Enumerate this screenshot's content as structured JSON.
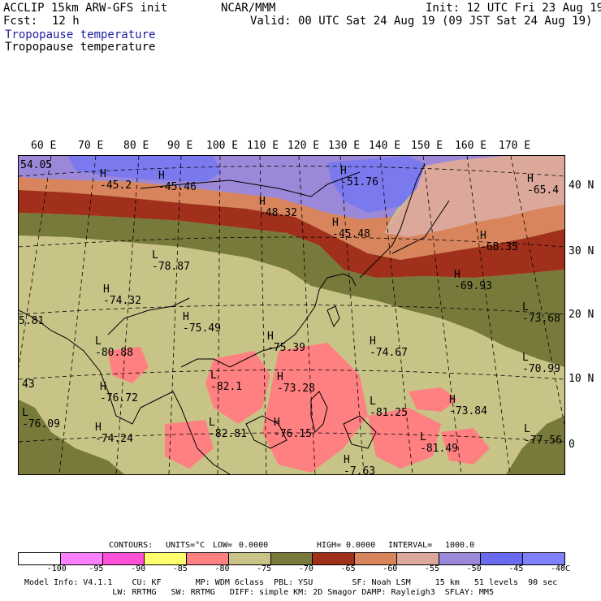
{
  "header": {
    "model_line": "ACCLIP 15km ARW-GFS init",
    "org": "NCAR/MMM",
    "init": "Init: 12 UTC Fri 23 Aug 19",
    "fcst_label": "Fcst:",
    "fcst_value": "12 h",
    "valid": "Valid: 00 UTC Sat 24 Aug 19 (09 JST Sat 24 Aug 19)",
    "field1": "Tropopause temperature",
    "field2": "Tropopause temperature"
  },
  "lon_labels": [
    "60 E",
    "70 E",
    "80 E",
    "90 E",
    "100 E",
    "110 E",
    "120 E",
    "130 E",
    "140 E",
    "150 E",
    "160 E",
    "170 E"
  ],
  "lat_labels": [
    "40 N",
    "30 N",
    "20 N",
    "10 N",
    "0"
  ],
  "map_labels": [
    {
      "letter": "",
      "value": "54.05"
    },
    {
      "letter": "H",
      "value": "-45.2"
    },
    {
      "letter": "H",
      "value": "-45.46"
    },
    {
      "letter": "H",
      "value": "-51.76"
    },
    {
      "letter": "H",
      "value": "-65.4"
    },
    {
      "letter": "H",
      "value": "-48.32"
    },
    {
      "letter": "H",
      "value": "-45.48"
    },
    {
      "letter": "H",
      "value": "-68.35"
    },
    {
      "letter": "L",
      "value": "-78.87"
    },
    {
      "letter": "H",
      "value": "-69.93"
    },
    {
      "letter": "H",
      "value": "-74.32"
    },
    {
      "letter": "L",
      "value": "-73.68"
    },
    {
      "letter": "",
      "value": "5.81"
    },
    {
      "letter": "H",
      "value": "-75.49"
    },
    {
      "letter": "L",
      "value": "-80.88"
    },
    {
      "letter": "H",
      "value": "-75.39"
    },
    {
      "letter": "H",
      "value": "-74.67"
    },
    {
      "letter": "L",
      "value": "-70.99"
    },
    {
      "letter": "",
      "value": "43"
    },
    {
      "letter": "L",
      "value": "-82.1"
    },
    {
      "letter": "H",
      "value": "-73.28"
    },
    {
      "letter": "H",
      "value": "-76.72"
    },
    {
      "letter": "L",
      "value": "-81.25"
    },
    {
      "letter": "H",
      "value": "-73.84"
    },
    {
      "letter": "L",
      "value": "-76.09"
    },
    {
      "letter": "H",
      "value": "-74.24"
    },
    {
      "letter": "L",
      "value": "-82.81"
    },
    {
      "letter": "H",
      "value": "-76.15"
    },
    {
      "letter": "L",
      "value": "-81.49"
    },
    {
      "letter": "L",
      "value": "-77.56"
    },
    {
      "letter": "H",
      "value": "-7.63"
    }
  ],
  "contour_info": {
    "contours": "CONTOURS:",
    "units": "UNITS=°C",
    "low": "LOW=",
    "low_value": "0.0000",
    "high": "HIGH=",
    "high_value": "0.0000",
    "interval": "INTERVAL=",
    "interval_value": "1000.0"
  },
  "colorbar": {
    "ticks": [
      "-100",
      "-95",
      "-90",
      "-85",
      "-80",
      "-75",
      "-70",
      "-65",
      "-60",
      "-55",
      "-50",
      "-45",
      "-40"
    ],
    "unit": "°C",
    "colors": [
      "#ffffff",
      "#ff80ff",
      "#ff50d8",
      "#ffff70",
      "#ff8080",
      "#c8c488",
      "#787a3c",
      "#a0301c",
      "#d8845c",
      "#dca89c",
      "#9c88d8",
      "#6a6af0",
      "#8080ff"
    ]
  },
  "footer": {
    "line1": "Model Info: V4.1.1    CU: KF       MP: WDM 6class  PBL: YSU        SF: Noah LSM     15 km   51 levels  90 sec",
    "line2": "                  LW: RRTMG   SW: RRTMG   DIFF: simple KM: 2D Smagor DAMP: Rayleigh3  SFLAY: MM5"
  },
  "map_colors": {
    "violet": "#9c88d8",
    "blue": "#7a7aee",
    "salmon_light": "#dca89c",
    "orange": "#d8845c",
    "dark_red": "#a0301c",
    "olive_dark": "#787a3c",
    "khaki": "#c8c488",
    "pink": "#ff8080"
  }
}
